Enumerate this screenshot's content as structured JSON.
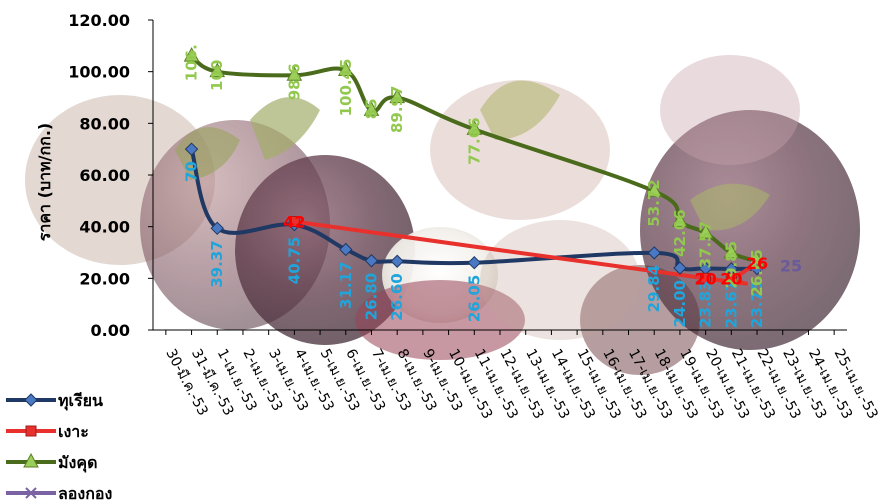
{
  "chart_data": {
    "type": "line",
    "title": "",
    "xlabel": "",
    "ylabel": "ราคา  (บาท/กก.)",
    "ylim": [
      0,
      120
    ],
    "yticks": [
      "0.00",
      "20.00",
      "40.00",
      "60.00",
      "80.00",
      "100.00",
      "120.00"
    ],
    "grid": false,
    "legend_position": "bottom-left",
    "categories": [
      "30-มี.ค.-53",
      "31-มี.ค.-53",
      "1-เม.ย.-53",
      "2-เม.ย.-53",
      "3-เม.ย.-53",
      "4-เม.ย.-53",
      "5-เม.ย.-53",
      "6-เม.ย.-53",
      "7-เม.ย.-53",
      "8-เม.ย.-53",
      "9-เม.ย.-53",
      "10-เม.ย.-53",
      "11-เม.ย.-53",
      "12-เม.ย.-53",
      "13-เม.ย.-53",
      "14-เม.ย.-53",
      "15-เม.ย.-53",
      "16-เม.ย.-53",
      "17-เม.ย.-53",
      "18-เม.ย.-53",
      "19-เม.ย.-53",
      "20-เม.ย.-53",
      "21-เม.ย.-53",
      "22-เม.ย.-53",
      "23-เม.ย.-53",
      "24-เม.ย.-53",
      "25-เม.ย.-53"
    ],
    "series": [
      {
        "name": "ทุเรียน",
        "color": "#1f3864",
        "label_color": "#1fa5dc",
        "marker": "diamond",
        "points": [
          {
            "i": 1,
            "v": 70,
            "label": "70"
          },
          {
            "i": 2,
            "v": 39.37,
            "label": "39.37"
          },
          {
            "i": 5,
            "v": 40.75,
            "label": "40.75"
          },
          {
            "i": 7,
            "v": 31.17,
            "label": "31.17"
          },
          {
            "i": 8,
            "v": 26.8,
            "label": "26.80"
          },
          {
            "i": 9,
            "v": 26.6,
            "label": "26.60"
          },
          {
            "i": 12,
            "v": 26.05,
            "label": "26.05"
          },
          {
            "i": 19,
            "v": 29.84,
            "label": "29.84"
          },
          {
            "i": 20,
            "v": 24.0,
            "label": "24.00"
          },
          {
            "i": 21,
            "v": 23.83,
            "label": "23.83"
          },
          {
            "i": 22,
            "v": 23.67,
            "label": "23.67"
          },
          {
            "i": 23,
            "v": 23.75,
            "label": "23.75"
          }
        ]
      },
      {
        "name": "เงาะ",
        "color": "#e8302c",
        "label_color": "#ff0000",
        "marker": "square",
        "points": [
          {
            "i": 5,
            "v": 42,
            "label": "42"
          },
          {
            "i": 21,
            "v": 20,
            "label": "20"
          },
          {
            "i": 22,
            "v": 20,
            "label": "20"
          },
          {
            "i": 23,
            "v": 26,
            "label": "26"
          }
        ]
      },
      {
        "name": "มังคุด",
        "color": "#4b6b1c",
        "label_color": "#92c84e",
        "marker": "triangle",
        "points": [
          {
            "i": 1,
            "v": 106,
            "label": "106."
          },
          {
            "i": 2,
            "v": 100,
            "label": "100"
          },
          {
            "i": 5,
            "v": 98.6,
            "label": "98.6"
          },
          {
            "i": 7,
            "v": 100.45,
            "label": "100.45"
          },
          {
            "i": 8,
            "v": 85,
            "label": "85"
          },
          {
            "i": 9,
            "v": 89.97,
            "label": "89.97"
          },
          {
            "i": 12,
            "v": 77.66,
            "label": "77.66"
          },
          {
            "i": 19,
            "v": 53.72,
            "label": "53.72"
          },
          {
            "i": 20,
            "v": 42.06,
            "label": "42.06"
          },
          {
            "i": 21,
            "v": 37.57,
            "label": "37.57"
          },
          {
            "i": 22,
            "v": 29.85,
            "label": "29.85"
          },
          {
            "i": 23,
            "v": 26.65,
            "label": "26.65"
          }
        ]
      },
      {
        "name": "ลองกอง",
        "color": "#7b62a3",
        "label_color": "#6b5a9b",
        "marker": "x",
        "points": [
          {
            "i": 23,
            "v": 25,
            "label": "25"
          }
        ]
      }
    ]
  }
}
